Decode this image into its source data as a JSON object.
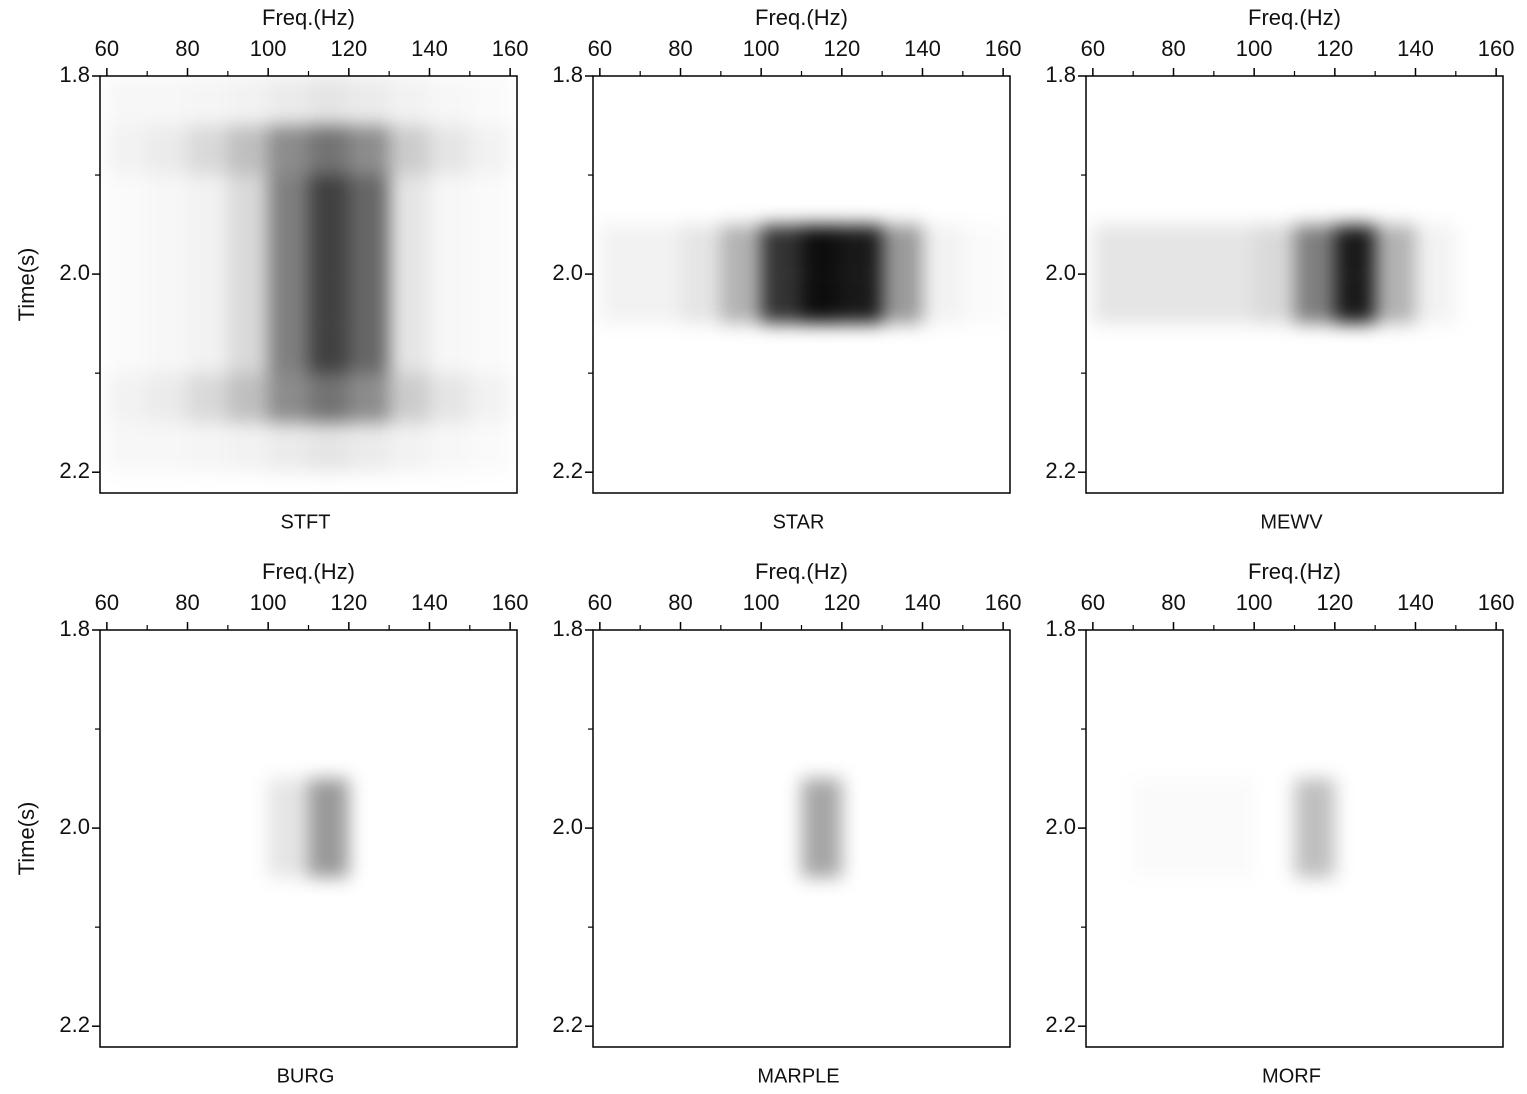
{
  "chart_data": [
    {
      "type": "heatmap",
      "title": "STFT",
      "xlabel": "Freq.(Hz)",
      "ylabel": "Time(s)",
      "color": "#000000",
      "xlim": [
        58.3,
        161.7
      ],
      "ylim": [
        1.8,
        2.221
      ],
      "xticks": [
        60,
        80,
        100,
        120,
        140,
        160
      ],
      "xminorticks": [
        70,
        90,
        110,
        130,
        150
      ],
      "yticks": [
        1.8,
        {
          "value": 2,
          "label": "2.0"
        },
        2.2
      ],
      "yminorticks": [
        1.9,
        2.1
      ],
      "xbins": [
        60,
        70,
        80,
        90,
        100,
        110,
        120,
        130,
        140,
        150,
        160
      ],
      "ybins": [
        1.8,
        1.85,
        1.9,
        1.95,
        2,
        2.05,
        2.1,
        2.15,
        2.2
      ],
      "z": [
        [
          0.03,
          0.03,
          0.04,
          0.05,
          0.08,
          0.1,
          0.08,
          0.05,
          0.03,
          0.02
        ],
        [
          0.05,
          0.08,
          0.15,
          0.25,
          0.45,
          0.55,
          0.45,
          0.2,
          0.1,
          0.05
        ],
        [
          0.02,
          0.03,
          0.05,
          0.15,
          0.5,
          0.75,
          0.6,
          0.1,
          0.03,
          0.02
        ],
        [
          0.02,
          0.03,
          0.05,
          0.15,
          0.5,
          0.75,
          0.6,
          0.1,
          0.03,
          0.02
        ],
        [
          0.02,
          0.03,
          0.05,
          0.15,
          0.5,
          0.75,
          0.6,
          0.1,
          0.03,
          0.02
        ],
        [
          0.02,
          0.03,
          0.05,
          0.15,
          0.5,
          0.75,
          0.6,
          0.1,
          0.03,
          0.02
        ],
        [
          0.05,
          0.08,
          0.15,
          0.25,
          0.45,
          0.55,
          0.45,
          0.2,
          0.1,
          0.05
        ],
        [
          0.03,
          0.03,
          0.04,
          0.05,
          0.08,
          0.1,
          0.08,
          0.05,
          0.03,
          0.02
        ]
      ]
    },
    {
      "type": "heatmap",
      "title": "STAR",
      "xlabel": "Freq.(Hz)",
      "color": "#000000",
      "xlim": [
        58.3,
        161.7
      ],
      "ylim": [
        1.8,
        2.221
      ],
      "xticks": [
        60,
        80,
        100,
        120,
        140,
        160
      ],
      "xminorticks": [
        70,
        90,
        110,
        130,
        150
      ],
      "yticks": [
        1.8,
        {
          "value": 2,
          "label": "2.0"
        },
        2.2
      ],
      "yminorticks": [
        1.9,
        2.1
      ],
      "xbins": [
        60,
        70,
        80,
        90,
        100,
        110,
        120,
        130,
        140,
        150,
        160
      ],
      "ybins": [
        1.8,
        1.85,
        1.9,
        1.95,
        2,
        2.05,
        2.1,
        2.15,
        2.2
      ],
      "z": [
        [
          0,
          0,
          0,
          0,
          0,
          0,
          0,
          0,
          0,
          0
        ],
        [
          0,
          0,
          0,
          0,
          0,
          0,
          0,
          0,
          0,
          0
        ],
        [
          0,
          0,
          0,
          0,
          0,
          0,
          0,
          0,
          0,
          0
        ],
        [
          0.05,
          0.05,
          0.1,
          0.3,
          0.8,
          0.95,
          0.9,
          0.4,
          0.05,
          0.02
        ],
        [
          0.05,
          0.05,
          0.1,
          0.3,
          0.8,
          0.95,
          0.9,
          0.4,
          0.05,
          0.02
        ],
        [
          0,
          0,
          0,
          0,
          0,
          0,
          0,
          0,
          0,
          0
        ],
        [
          0,
          0,
          0,
          0,
          0,
          0,
          0,
          0,
          0,
          0
        ],
        [
          0,
          0,
          0,
          0,
          0,
          0,
          0,
          0,
          0,
          0
        ]
      ]
    },
    {
      "type": "heatmap",
      "title": "MEWV",
      "xlabel": "Freq.(Hz)",
      "color": "#000000",
      "xlim": [
        58.3,
        161.7
      ],
      "ylim": [
        1.8,
        2.221
      ],
      "xticks": [
        60,
        80,
        100,
        120,
        140,
        160
      ],
      "xminorticks": [
        70,
        90,
        110,
        130,
        150
      ],
      "yticks": [
        1.8,
        {
          "value": 2,
          "label": "2.0"
        },
        2.2
      ],
      "yminorticks": [
        1.9,
        2.1
      ],
      "xbins": [
        60,
        70,
        80,
        90,
        100,
        110,
        120,
        130,
        140,
        150,
        160
      ],
      "ybins": [
        1.8,
        1.85,
        1.9,
        1.95,
        2,
        2.05,
        2.1,
        2.15,
        2.2
      ],
      "z": [
        [
          0,
          0,
          0,
          0,
          0,
          0,
          0,
          0,
          0,
          0
        ],
        [
          0,
          0,
          0,
          0,
          0,
          0,
          0,
          0,
          0,
          0
        ],
        [
          0,
          0,
          0,
          0,
          0,
          0,
          0,
          0,
          0,
          0
        ],
        [
          0.1,
          0.1,
          0.1,
          0.1,
          0.15,
          0.5,
          0.9,
          0.3,
          0.05,
          0
        ],
        [
          0.1,
          0.1,
          0.1,
          0.1,
          0.15,
          0.5,
          0.9,
          0.3,
          0.05,
          0
        ],
        [
          0,
          0,
          0,
          0,
          0,
          0,
          0,
          0,
          0,
          0
        ],
        [
          0,
          0,
          0,
          0,
          0,
          0,
          0,
          0,
          0,
          0
        ],
        [
          0,
          0,
          0,
          0,
          0,
          0,
          0,
          0,
          0,
          0
        ]
      ]
    },
    {
      "type": "heatmap",
      "title": "BURG",
      "xlabel": "Freq.(Hz)",
      "ylabel": "Time(s)",
      "color": "#000000",
      "xlim": [
        58.3,
        161.7
      ],
      "ylim": [
        1.8,
        2.221
      ],
      "xticks": [
        60,
        80,
        100,
        120,
        140,
        160
      ],
      "xminorticks": [
        70,
        90,
        110,
        130,
        150
      ],
      "yticks": [
        1.8,
        {
          "value": 2,
          "label": "2.0"
        },
        2.2
      ],
      "yminorticks": [
        1.9,
        2.1
      ],
      "xbins": [
        60,
        70,
        80,
        90,
        100,
        110,
        120,
        130,
        140,
        150,
        160
      ],
      "ybins": [
        1.8,
        1.85,
        1.9,
        1.95,
        2,
        2.05,
        2.1,
        2.15,
        2.2
      ],
      "z": [
        [
          0,
          0,
          0,
          0,
          0,
          0,
          0,
          0,
          0,
          0
        ],
        [
          0,
          0,
          0,
          0,
          0,
          0,
          0,
          0,
          0,
          0
        ],
        [
          0,
          0,
          0,
          0,
          0,
          0,
          0,
          0,
          0,
          0
        ],
        [
          0,
          0,
          0,
          0,
          0.1,
          0.4,
          0,
          0,
          0,
          0
        ],
        [
          0,
          0,
          0,
          0,
          0.1,
          0.4,
          0,
          0,
          0,
          0
        ],
        [
          0,
          0,
          0,
          0,
          0,
          0,
          0,
          0,
          0,
          0
        ],
        [
          0,
          0,
          0,
          0,
          0,
          0,
          0,
          0,
          0,
          0
        ],
        [
          0,
          0,
          0,
          0,
          0,
          0,
          0,
          0,
          0,
          0
        ]
      ]
    },
    {
      "type": "heatmap",
      "title": "MARPLE",
      "xlabel": "Freq.(Hz)",
      "color": "#000000",
      "xlim": [
        58.3,
        161.7
      ],
      "ylim": [
        1.8,
        2.221
      ],
      "xticks": [
        60,
        80,
        100,
        120,
        140,
        160
      ],
      "xminorticks": [
        70,
        90,
        110,
        130,
        150
      ],
      "yticks": [
        1.8,
        {
          "value": 2,
          "label": "2.0"
        },
        2.2
      ],
      "yminorticks": [
        1.9,
        2.1
      ],
      "xbins": [
        60,
        70,
        80,
        90,
        100,
        110,
        120,
        130,
        140,
        150,
        160
      ],
      "ybins": [
        1.8,
        1.85,
        1.9,
        1.95,
        2,
        2.05,
        2.1,
        2.15,
        2.2
      ],
      "z": [
        [
          0,
          0,
          0,
          0,
          0,
          0,
          0,
          0,
          0,
          0
        ],
        [
          0,
          0,
          0,
          0,
          0,
          0,
          0,
          0,
          0,
          0
        ],
        [
          0,
          0,
          0,
          0,
          0,
          0,
          0,
          0,
          0,
          0
        ],
        [
          0,
          0,
          0,
          0,
          0,
          0.35,
          0,
          0,
          0,
          0
        ],
        [
          0,
          0,
          0,
          0,
          0,
          0.35,
          0,
          0,
          0,
          0
        ],
        [
          0,
          0,
          0,
          0,
          0,
          0,
          0,
          0,
          0,
          0
        ],
        [
          0,
          0,
          0,
          0,
          0,
          0,
          0,
          0,
          0,
          0
        ],
        [
          0,
          0,
          0,
          0,
          0,
          0,
          0,
          0,
          0,
          0
        ]
      ]
    },
    {
      "type": "heatmap",
      "title": "MORF",
      "xlabel": "Freq.(Hz)",
      "color": "#000000",
      "xlim": [
        58.3,
        161.7
      ],
      "ylim": [
        1.8,
        2.221
      ],
      "xticks": [
        60,
        80,
        100,
        120,
        140,
        160
      ],
      "xminorticks": [
        70,
        90,
        110,
        130,
        150
      ],
      "yticks": [
        1.8,
        {
          "value": 2,
          "label": "2.0"
        },
        2.2
      ],
      "yminorticks": [
        1.9,
        2.1
      ],
      "xbins": [
        60,
        70,
        80,
        90,
        100,
        110,
        120,
        130,
        140,
        150,
        160
      ],
      "ybins": [
        1.8,
        1.85,
        1.9,
        1.95,
        2,
        2.05,
        2.1,
        2.15,
        2.2
      ],
      "z": [
        [
          0,
          0,
          0,
          0,
          0,
          0,
          0,
          0,
          0,
          0
        ],
        [
          0,
          0,
          0,
          0,
          0,
          0,
          0,
          0,
          0,
          0
        ],
        [
          0,
          0,
          0,
          0,
          0,
          0,
          0,
          0,
          0,
          0
        ],
        [
          0,
          0.02,
          0.02,
          0.02,
          0,
          0.25,
          0,
          0,
          0,
          0
        ],
        [
          0,
          0.02,
          0.02,
          0.02,
          0,
          0.25,
          0,
          0,
          0,
          0
        ],
        [
          0,
          0,
          0,
          0,
          0,
          0,
          0,
          0,
          0,
          0
        ],
        [
          0,
          0,
          0,
          0,
          0,
          0,
          0,
          0,
          0,
          0
        ],
        [
          0,
          0,
          0,
          0,
          0,
          0,
          0,
          0,
          0,
          0
        ]
      ]
    }
  ]
}
